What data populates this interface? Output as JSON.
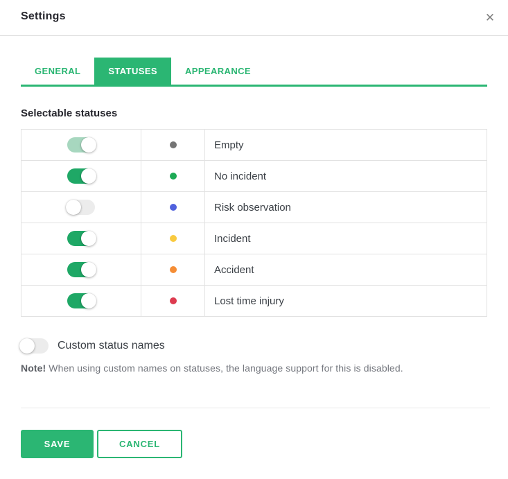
{
  "modal": {
    "title": "Settings",
    "close_icon": "✕"
  },
  "tabs": [
    {
      "label": "GENERAL",
      "active": false
    },
    {
      "label": "STATUSES",
      "active": true
    },
    {
      "label": "APPEARANCE",
      "active": false
    }
  ],
  "content": {
    "heading": "Selectable statuses",
    "statuses": [
      {
        "name": "Empty",
        "dot_color": "#757575",
        "enabled": true,
        "muted": true
      },
      {
        "name": "No incident",
        "dot_color": "#1caa55",
        "enabled": true,
        "muted": false
      },
      {
        "name": "Risk observation",
        "dot_color": "#5061dd",
        "enabled": false,
        "muted": false
      },
      {
        "name": "Incident",
        "dot_color": "#f9ca3f",
        "enabled": true,
        "muted": false
      },
      {
        "name": "Accident",
        "dot_color": "#f58d35",
        "enabled": true,
        "muted": false
      },
      {
        "name": "Lost time injury",
        "dot_color": "#dd3b4f",
        "enabled": true,
        "muted": false
      }
    ],
    "custom_status": {
      "label": "Custom status names",
      "enabled": false
    },
    "note_prefix": "Note!",
    "note_text": "When using custom names on statuses, the language support for this is disabled."
  },
  "footer": {
    "save_label": "SAVE",
    "cancel_label": "CANCEL"
  },
  "colors": {
    "accent": "#2bb673",
    "toggle_on": "#1fa866",
    "toggle_on_muted": "#a7d7bf",
    "toggle_off": "#ececec"
  }
}
